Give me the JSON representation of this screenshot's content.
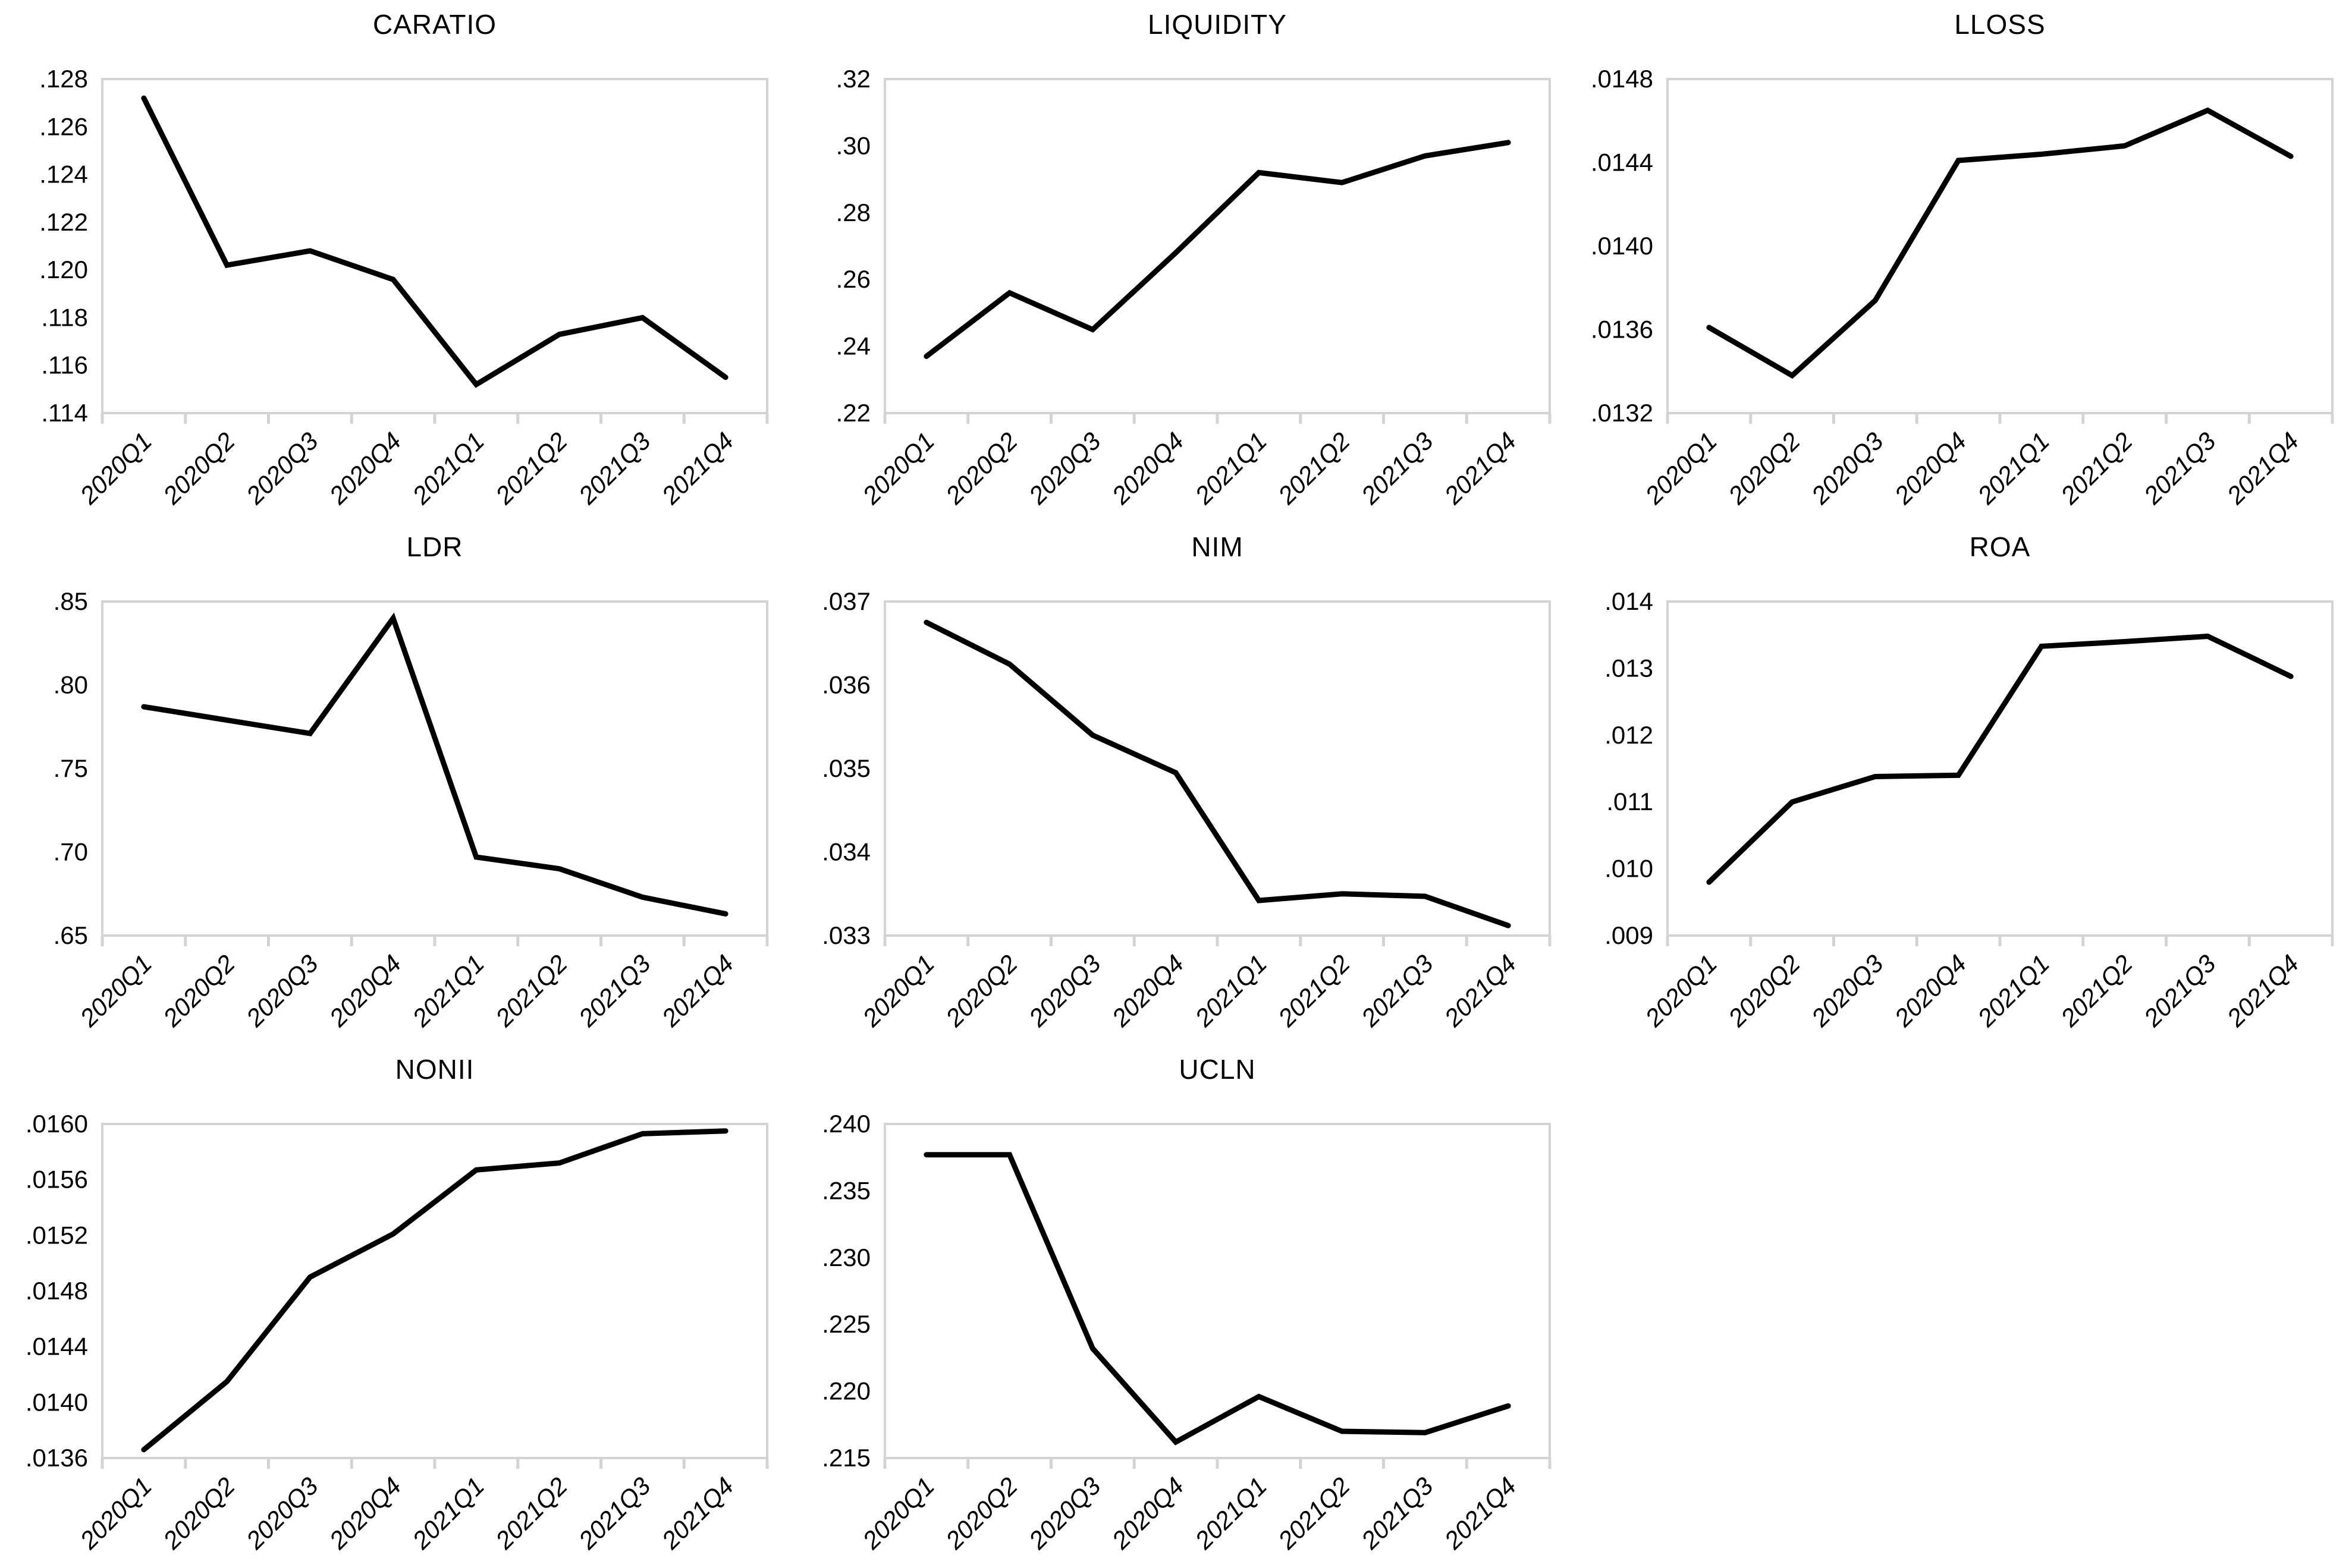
{
  "colors": {
    "line": "#000000",
    "axis": "#d3d3d3",
    "text": "#000000",
    "background": "#ffffff"
  },
  "categories": [
    "2020Q1",
    "2020Q2",
    "2020Q3",
    "2020Q4",
    "2021Q1",
    "2021Q2",
    "2021Q3",
    "2021Q4"
  ],
  "chart_data": [
    {
      "type": "line",
      "title": "CARATIO",
      "xlabel": "",
      "ylabel": "",
      "grid": false,
      "legend": "none",
      "categories": [
        "2020Q1",
        "2020Q2",
        "2020Q3",
        "2020Q4",
        "2021Q1",
        "2021Q2",
        "2021Q3",
        "2021Q4"
      ],
      "values": [
        0.1272,
        0.1202,
        0.1208,
        0.1196,
        0.1152,
        0.1173,
        0.118,
        0.1155
      ],
      "ylim": [
        0.114,
        0.128
      ],
      "ytick_values": [
        0.128,
        0.126,
        0.124,
        0.122,
        0.12,
        0.118,
        0.116,
        0.114
      ],
      "ytick_labels": [
        ".128",
        ".126",
        ".124",
        ".122",
        ".120",
        ".118",
        ".116",
        ".114"
      ]
    },
    {
      "type": "line",
      "title": "LIQUIDITY",
      "xlabel": "",
      "ylabel": "",
      "grid": false,
      "legend": "none",
      "categories": [
        "2020Q1",
        "2020Q2",
        "2020Q3",
        "2020Q4",
        "2021Q1",
        "2021Q2",
        "2021Q3",
        "2021Q4"
      ],
      "values": [
        0.237,
        0.256,
        0.245,
        0.268,
        0.292,
        0.289,
        0.297,
        0.301
      ],
      "ylim": [
        0.22,
        0.32
      ],
      "ytick_values": [
        0.32,
        0.3,
        0.28,
        0.26,
        0.24,
        0.22
      ],
      "ytick_labels": [
        ".32",
        ".30",
        ".28",
        ".26",
        ".24",
        ".22"
      ]
    },
    {
      "type": "line",
      "title": "LLOSS",
      "xlabel": "",
      "ylabel": "",
      "grid": false,
      "legend": "none",
      "categories": [
        "2020Q1",
        "2020Q2",
        "2020Q3",
        "2020Q4",
        "2021Q1",
        "2021Q2",
        "2021Q3",
        "2021Q4"
      ],
      "values": [
        0.01361,
        0.01338,
        0.01374,
        0.01441,
        0.01444,
        0.01448,
        0.01465,
        0.01443
      ],
      "ylim": [
        0.0132,
        0.0148
      ],
      "ytick_values": [
        0.0148,
        0.0144,
        0.014,
        0.0136,
        0.0132
      ],
      "ytick_labels": [
        ".0148",
        ".0144",
        ".0140",
        ".0136",
        ".0132"
      ]
    },
    {
      "type": "line",
      "title": "LDR",
      "xlabel": "",
      "ylabel": "",
      "grid": false,
      "legend": "none",
      "categories": [
        "2020Q1",
        "2020Q2",
        "2020Q3",
        "2020Q4",
        "2021Q1",
        "2021Q2",
        "2021Q3",
        "2021Q4"
      ],
      "values": [
        0.787,
        0.779,
        0.771,
        0.84,
        0.697,
        0.69,
        0.673,
        0.663
      ],
      "ylim": [
        0.65,
        0.85
      ],
      "ytick_values": [
        0.85,
        0.8,
        0.75,
        0.7,
        0.65
      ],
      "ytick_labels": [
        ".85",
        ".80",
        ".75",
        ".70",
        ".65"
      ]
    },
    {
      "type": "line",
      "title": "NIM",
      "xlabel": "",
      "ylabel": "",
      "grid": false,
      "legend": "none",
      "categories": [
        "2020Q1",
        "2020Q2",
        "2020Q3",
        "2020Q4",
        "2021Q1",
        "2021Q2",
        "2021Q3",
        "2021Q4"
      ],
      "values": [
        0.03675,
        0.03625,
        0.0354,
        0.03495,
        0.03342,
        0.0335,
        0.03347,
        0.03312
      ],
      "ylim": [
        0.033,
        0.037
      ],
      "ytick_values": [
        0.037,
        0.036,
        0.035,
        0.034,
        0.033
      ],
      "ytick_labels": [
        ".037",
        ".036",
        ".035",
        ".034",
        ".033"
      ]
    },
    {
      "type": "line",
      "title": "ROA",
      "xlabel": "",
      "ylabel": "",
      "grid": false,
      "legend": "none",
      "categories": [
        "2020Q1",
        "2020Q2",
        "2020Q3",
        "2020Q4",
        "2021Q1",
        "2021Q2",
        "2021Q3",
        "2021Q4"
      ],
      "values": [
        0.0098,
        0.011,
        0.01138,
        0.0114,
        0.01333,
        0.0134,
        0.01348,
        0.01288
      ],
      "ylim": [
        0.009,
        0.014
      ],
      "ytick_values": [
        0.014,
        0.013,
        0.012,
        0.011,
        0.01,
        0.009
      ],
      "ytick_labels": [
        ".014",
        ".013",
        ".012",
        ".011",
        ".010",
        ".009"
      ]
    },
    {
      "type": "line",
      "title": "NONII",
      "xlabel": "",
      "ylabel": "",
      "grid": false,
      "legend": "none",
      "categories": [
        "2020Q1",
        "2020Q2",
        "2020Q3",
        "2020Q4",
        "2021Q1",
        "2021Q2",
        "2021Q3",
        "2021Q4"
      ],
      "values": [
        0.01366,
        0.01415,
        0.0149,
        0.01521,
        0.01567,
        0.01572,
        0.01593,
        0.01595
      ],
      "ylim": [
        0.0136,
        0.016
      ],
      "ytick_values": [
        0.016,
        0.0156,
        0.0152,
        0.0148,
        0.0144,
        0.014,
        0.0136
      ],
      "ytick_labels": [
        ".0160",
        ".0156",
        ".0152",
        ".0148",
        ".0144",
        ".0140",
        ".0136"
      ]
    },
    {
      "type": "line",
      "title": "UCLN",
      "xlabel": "",
      "ylabel": "",
      "grid": false,
      "legend": "none",
      "categories": [
        "2020Q1",
        "2020Q2",
        "2020Q3",
        "2020Q4",
        "2021Q1",
        "2021Q2",
        "2021Q3",
        "2021Q4"
      ],
      "values": [
        0.2377,
        0.2377,
        0.2232,
        0.2162,
        0.2196,
        0.217,
        0.2169,
        0.2189
      ],
      "ylim": [
        0.215,
        0.24
      ],
      "ytick_values": [
        0.24,
        0.235,
        0.23,
        0.225,
        0.22,
        0.215
      ],
      "ytick_labels": [
        ".240",
        ".235",
        ".230",
        ".225",
        ".220",
        ".215"
      ]
    }
  ]
}
